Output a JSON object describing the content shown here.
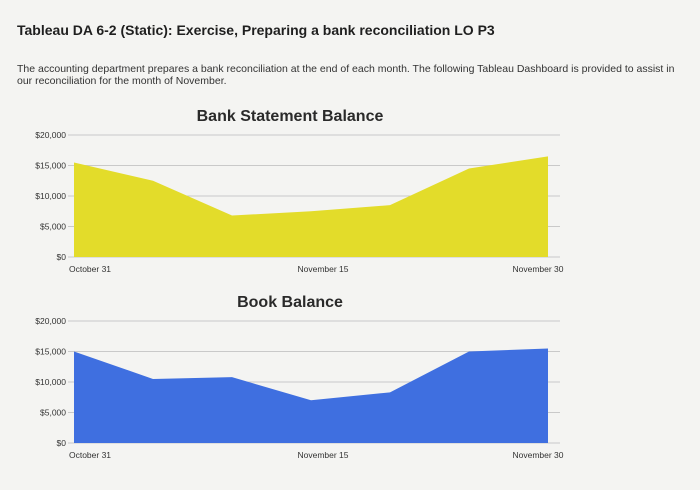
{
  "page": {
    "title": "Tableau DA 6-2 (Static): Exercise, Preparing a bank reconciliation LO P3",
    "intro": "The accounting department prepares a bank reconciliation at the end of each month. The following Tableau Dashboard is provided to assist in our reconciliation for the month of November."
  },
  "chart_data": [
    {
      "type": "area",
      "title": "Bank Statement Balance",
      "color": "#e3dc2a",
      "x": [
        "October 31",
        "November 5",
        "November 10",
        "November 15",
        "November 20",
        "November 25",
        "November 30"
      ],
      "values": [
        15500,
        12500,
        6800,
        7500,
        8500,
        14500,
        16500
      ],
      "xticks": [
        "October 31",
        "November 15",
        "November 30"
      ],
      "yticks": [
        "$0",
        "$5,000",
        "$10,000",
        "$15,000",
        "$20,000"
      ],
      "ylim": [
        0,
        20000
      ],
      "grid": true
    },
    {
      "type": "area",
      "title": "Book Balance",
      "color": "#3f6fe0",
      "x": [
        "October 31",
        "November 5",
        "November 10",
        "November 15",
        "November 20",
        "November 25",
        "November 30"
      ],
      "values": [
        15000,
        10500,
        10800,
        7000,
        8300,
        15000,
        15500
      ],
      "xticks": [
        "October 31",
        "November 15",
        "November 30"
      ],
      "yticks": [
        "$0",
        "$5,000",
        "$10,000",
        "$15,000",
        "$20,000"
      ],
      "ylim": [
        0,
        20000
      ],
      "grid": true
    }
  ]
}
